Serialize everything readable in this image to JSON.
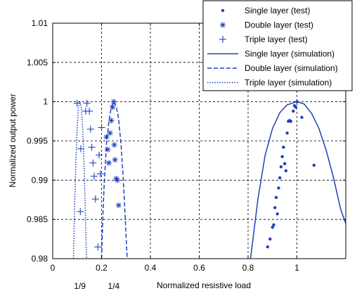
{
  "chart_data": {
    "type": "scatter",
    "title": "",
    "xlabel": "Normalized resistive load",
    "ylabel": "Normalized output power",
    "xlim": [
      0,
      1.2
    ],
    "ylim": [
      0.98,
      1.01
    ],
    "x_ticks": [
      "0",
      "0.2",
      "0.4",
      "0.6",
      "0.8",
      "1"
    ],
    "x_tick_values": [
      0,
      0.2,
      0.4,
      0.6,
      0.8,
      1
    ],
    "y_ticks": [
      "0.98",
      "0.985",
      "0.99",
      "0.995",
      "1",
      "1.005",
      "1.01"
    ],
    "y_tick_values": [
      0.98,
      0.985,
      0.99,
      0.995,
      1,
      1.005,
      1.01
    ],
    "extra_x_labels": [
      {
        "text": "1/9",
        "x": 0.1111
      },
      {
        "text": "1/4",
        "x": 0.25
      }
    ],
    "grid": true,
    "legend_position": "top-right",
    "color": "#1f3fbf",
    "series": [
      {
        "name": "Single layer (test)",
        "kind": "test",
        "marker": "dot",
        "points": [
          [
            0.88,
            0.9815
          ],
          [
            0.89,
            0.9825
          ],
          [
            0.9,
            0.984
          ],
          [
            0.905,
            0.9843
          ],
          [
            0.91,
            0.9865
          ],
          [
            0.915,
            0.9878
          ],
          [
            0.92,
            0.9857
          ],
          [
            0.925,
            0.989
          ],
          [
            0.93,
            0.9903
          ],
          [
            0.935,
            0.9917
          ],
          [
            0.95,
            0.9921
          ],
          [
            0.955,
            0.9912
          ],
          [
            0.94,
            0.993
          ],
          [
            0.945,
            0.9942
          ],
          [
            0.96,
            0.996
          ],
          [
            0.965,
            0.9975
          ],
          [
            0.97,
            0.9976
          ],
          [
            0.975,
            0.9975
          ],
          [
            0.985,
            0.9988
          ],
          [
            0.99,
            0.9995
          ],
          [
            0.995,
            0.9993
          ],
          [
            1.0,
            1.0
          ],
          [
            1.02,
            0.998
          ],
          [
            1.07,
            0.9919
          ]
        ]
      },
      {
        "name": "Double layer (test)",
        "kind": "test",
        "marker": "star",
        "points": [
          [
            0.22,
            0.9955
          ],
          [
            0.225,
            0.9939
          ],
          [
            0.23,
            0.9922
          ],
          [
            0.235,
            0.996
          ],
          [
            0.24,
            0.9976
          ],
          [
            0.245,
            0.9993
          ],
          [
            0.25,
            1.0
          ],
          [
            0.252,
            0.9945
          ],
          [
            0.255,
            0.9926
          ],
          [
            0.26,
            0.9902
          ],
          [
            0.265,
            0.99
          ],
          [
            0.27,
            0.9868
          ]
        ]
      },
      {
        "name": "Triple layer (test)",
        "kind": "test",
        "marker": "plus",
        "points": [
          [
            0.1,
            0.9998
          ],
          [
            0.115,
            0.994
          ],
          [
            0.113,
            0.986
          ],
          [
            0.135,
            0.9988
          ],
          [
            0.14,
            0.9998
          ],
          [
            0.15,
            0.9988
          ],
          [
            0.155,
            0.9965
          ],
          [
            0.16,
            0.9942
          ],
          [
            0.165,
            0.9922
          ],
          [
            0.17,
            0.9905
          ],
          [
            0.175,
            0.9876
          ],
          [
            0.185,
            0.9815
          ],
          [
            0.19,
            0.9932
          ],
          [
            0.195,
            0.9908
          ],
          [
            0.2,
            0.9967
          ]
        ]
      },
      {
        "name": "Single layer (simulation)",
        "kind": "simulation",
        "style": "solid",
        "optimum": 1.0,
        "points": [
          [
            0.81,
            0.98
          ],
          [
            0.84,
            0.9875
          ],
          [
            0.87,
            0.9932
          ],
          [
            0.9,
            0.9966
          ],
          [
            0.93,
            0.9986
          ],
          [
            0.96,
            0.9996
          ],
          [
            1.0,
            1.0
          ],
          [
            1.03,
            0.9997
          ],
          [
            1.06,
            0.9985
          ],
          [
            1.09,
            0.9966
          ],
          [
            1.12,
            0.9938
          ],
          [
            1.15,
            0.9903
          ],
          [
            1.18,
            0.9862
          ],
          [
            1.2,
            0.9845
          ]
        ]
      },
      {
        "name": "Double layer (simulation)",
        "kind": "simulation",
        "style": "dashed",
        "optimum": 0.25,
        "points": [
          [
            0.2,
            0.98
          ],
          [
            0.205,
            0.985
          ],
          [
            0.21,
            0.989
          ],
          [
            0.22,
            0.9945
          ],
          [
            0.23,
            0.9975
          ],
          [
            0.24,
            0.9993
          ],
          [
            0.25,
            1.0
          ],
          [
            0.26,
            0.9994
          ],
          [
            0.27,
            0.9978
          ],
          [
            0.28,
            0.9945
          ],
          [
            0.29,
            0.9895
          ],
          [
            0.3,
            0.983
          ],
          [
            0.305,
            0.98
          ]
        ]
      },
      {
        "name": "Triple layer (simulation)",
        "kind": "simulation",
        "style": "dotted",
        "optimum": 0.1111,
        "points": [
          [
            0.085,
            0.98
          ],
          [
            0.09,
            0.987
          ],
          [
            0.095,
            0.9925
          ],
          [
            0.1,
            0.9967
          ],
          [
            0.105,
            0.9992
          ],
          [
            0.1111,
            1.0
          ],
          [
            0.117,
            0.9992
          ],
          [
            0.123,
            0.9965
          ],
          [
            0.128,
            0.992
          ],
          [
            0.133,
            0.987
          ],
          [
            0.137,
            0.9815
          ],
          [
            0.139,
            0.98
          ]
        ]
      }
    ]
  }
}
